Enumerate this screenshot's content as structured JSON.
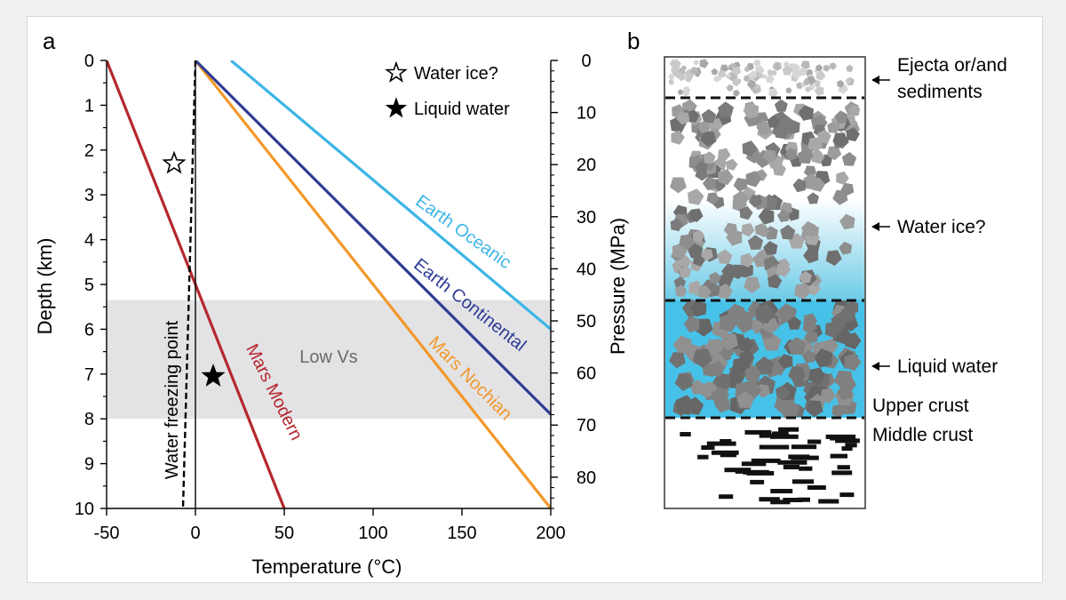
{
  "panel_labels": {
    "a": "a",
    "b": "b"
  },
  "chart_data": [
    {
      "type": "line",
      "panel": "a",
      "xlabel": "Temperature (°C)",
      "ylabel": "Depth (km)",
      "y2label": "Pressure (MPa)",
      "xlim": [
        -50,
        200
      ],
      "ylim": [
        0,
        10
      ],
      "y2lim": [
        0,
        86
      ],
      "x_ticks": [
        -50,
        0,
        50,
        100,
        150,
        200
      ],
      "x_tick_labels": [
        "-50",
        "0",
        "50",
        "100",
        "150",
        "200"
      ],
      "y_ticks": [
        0,
        1,
        2,
        3,
        4,
        5,
        6,
        7,
        8,
        9,
        10
      ],
      "y_tick_labels": [
        "0",
        "1",
        "2",
        "3",
        "4",
        "5",
        "6",
        "7",
        "8",
        "9",
        "10"
      ],
      "y2_ticks": [
        0,
        10,
        20,
        30,
        40,
        50,
        60,
        70,
        80
      ],
      "y2_tick_labels": [
        "0",
        "10",
        "20",
        "30",
        "40",
        "50",
        "60",
        "70",
        "80"
      ],
      "series": [
        {
          "name": "Mars Modern",
          "color": "#b5272d",
          "x": [
            -50,
            50
          ],
          "y": [
            0,
            10
          ]
        },
        {
          "name": "Mars Nochian",
          "color": "#f3982a",
          "x": [
            0,
            200
          ],
          "y": [
            0,
            10
          ]
        },
        {
          "name": "Earth Continental",
          "color": "#2f3c95",
          "x": [
            0,
            200
          ],
          "y": [
            0,
            7.9
          ]
        },
        {
          "name": "Earth Oceanic",
          "color": "#3db5e6",
          "x": [
            20,
            200
          ],
          "y": [
            0,
            6
          ]
        }
      ],
      "freezing_line": {
        "label": "Water freezing point",
        "x": [
          0,
          -7
        ],
        "y": [
          0,
          10
        ],
        "color": "#000000"
      },
      "zero_line": {
        "x": 0
      },
      "shaded_band": {
        "label": "Low Vs",
        "y_from": 5.35,
        "y_to": 8.0,
        "color": "#e3e3e6"
      },
      "markers": [
        {
          "name": "Water ice?",
          "symbol": "star-open",
          "x": -12,
          "y": 2.3
        },
        {
          "name": "Liquid water",
          "symbol": "star-filled",
          "x": 10,
          "y": 7.05
        }
      ],
      "legend": [
        {
          "label": "Water ice?",
          "symbol": "star-open"
        },
        {
          "label": "Liquid water",
          "symbol": "star-filled"
        }
      ],
      "legend_position": "top-right"
    },
    {
      "type": "diagram",
      "panel": "b",
      "layers": [
        {
          "name": "ejecta",
          "annotation": "Ejecta or/and",
          "annotation2": "sediments",
          "color": "#c4c4c4"
        },
        {
          "name": "water-ice-zone",
          "annotation": "Water ice?",
          "color": "#8a8a8a",
          "pore_color": "#6ec9e6"
        },
        {
          "name": "liquid-water-zone",
          "annotation": "Liquid water",
          "color": "#7a7a7a",
          "pore_color": "#3ec0e6"
        },
        {
          "name": "upper-crust",
          "annotation": "Upper crust"
        },
        {
          "name": "middle-crust",
          "annotation": "Middle crust",
          "color": "#111111"
        }
      ]
    }
  ]
}
